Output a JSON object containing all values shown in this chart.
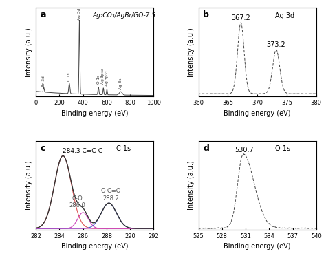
{
  "title_a": "Ag₂CO₃/AgBr/GO-7.5",
  "label_a": "a",
  "label_b": "b",
  "label_c": "c",
  "label_d": "d",
  "panel_b_title": "Ag 3d",
  "panel_c_title": "C 1s",
  "panel_d_title": "O 1s",
  "xlabel": "Binding energy (eV)",
  "ylabel": "Intensity (a.u.)",
  "panel_a_xlim": [
    0,
    1000
  ],
  "panel_b_xlim": [
    360,
    380
  ],
  "panel_c_xlim": [
    282,
    292
  ],
  "panel_d_xlim": [
    525,
    540
  ],
  "bg_color": "#ffffff",
  "line_color": "#444444",
  "peak_b1": 367.2,
  "peak_b2": 373.2,
  "peak_c1": 284.3,
  "peak_c2": 286.0,
  "peak_c3": 288.2,
  "peak_d1": 530.7,
  "font_size_label": 9,
  "font_size_axis": 7,
  "font_size_annotation": 6,
  "font_size_title": 7
}
